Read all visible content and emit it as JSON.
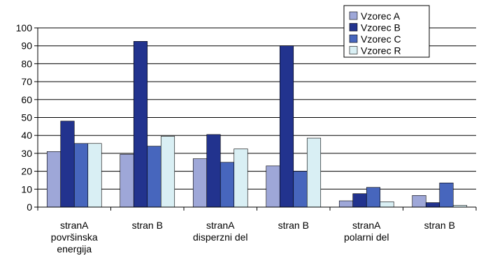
{
  "chart_data": {
    "type": "bar",
    "title": "",
    "xlabel": "",
    "ylabel": "",
    "ylim": [
      0,
      100
    ],
    "yticks": [
      0,
      10,
      20,
      30,
      40,
      50,
      60,
      70,
      80,
      90,
      100
    ],
    "grid": true,
    "legend_position": "top-right",
    "categories": [
      [
        "stranA",
        "površinska",
        "energija"
      ],
      [
        "stran B"
      ],
      [
        "stranA",
        "disperzni del"
      ],
      [
        "stran B"
      ],
      [
        "stranA",
        "polarni del"
      ],
      [
        "stran B"
      ]
    ],
    "series": [
      {
        "name": "Vzorec A",
        "color": "#9ea7d8",
        "values": [
          31,
          29.5,
          27,
          23,
          3.5,
          6.5
        ]
      },
      {
        "name": "Vzorec B",
        "color": "#22338e",
        "values": [
          48,
          92.5,
          40.5,
          90,
          7.5,
          2.5
        ]
      },
      {
        "name": "Vzorec C",
        "color": "#4766bd",
        "values": [
          35.5,
          34,
          25,
          20,
          11,
          13.5
        ]
      },
      {
        "name": "Vzorec R",
        "color": "#d9eff4",
        "values": [
          35.5,
          39.5,
          32.5,
          38.5,
          3,
          1
        ]
      }
    ]
  }
}
